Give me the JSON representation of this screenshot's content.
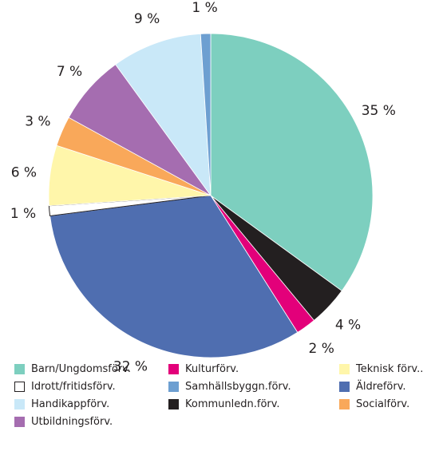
{
  "chart_data": {
    "type": "pie",
    "slices": [
      {
        "name": "Barn/Ungdomsförv.",
        "value": 35,
        "label": "35 %",
        "color": "#7dcfbf"
      },
      {
        "name": "Kommunledn.förv.",
        "value": 4,
        "label": "4 %",
        "color": "#231f20"
      },
      {
        "name": "Kulturförv.",
        "value": 2,
        "label": "2 %",
        "color": "#e3007a"
      },
      {
        "name": "Äldreförv.",
        "value": 32,
        "label": "32 %",
        "color": "#4f6eb0"
      },
      {
        "name": "Idrott/fritidsförv.",
        "value": 1,
        "label": "1 %",
        "color": "#ffffff"
      },
      {
        "name": "Teknisk förv.",
        "value": 6,
        "label": "6 %",
        "color": "#fff6aa"
      },
      {
        "name": "Socialförv.",
        "value": 3,
        "label": "3 %",
        "color": "#f9a85a"
      },
      {
        "name": "Utbildningsförv.",
        "value": 7,
        "label": "7 %",
        "color": "#a56db0"
      },
      {
        "name": "Handikappförv.",
        "value": 9,
        "label": "9 %",
        "color": "#c9e8f8"
      },
      {
        "name": "Samhällsbyggn.förv.",
        "value": 1,
        "label": "1 %",
        "color": "#6d9fd1"
      }
    ],
    "legend": [
      {
        "label": "Barn/Ungdomsförv.",
        "color": "#7dcfbf"
      },
      {
        "label": "Kulturförv.",
        "color": "#e3007a"
      },
      {
        "label": "Teknisk förv..",
        "color": "#fff6aa"
      },
      {
        "label": "Idrott/fritidsförv.",
        "color": "#ffffff"
      },
      {
        "label": "Samhällsbyggn.förv.",
        "color": "#6d9fd1"
      },
      {
        "label": "Äldreförv.",
        "color": "#4f6eb0"
      },
      {
        "label": "Handikappförv.",
        "color": "#c9e8f8"
      },
      {
        "label": "Kommunledn.förv.",
        "color": "#231f20"
      },
      {
        "label": "Socialförv.",
        "color": "#f9a85a"
      },
      {
        "label": "Utbildningsförv.",
        "color": "#a56db0"
      }
    ],
    "legend_position": "bottom"
  }
}
